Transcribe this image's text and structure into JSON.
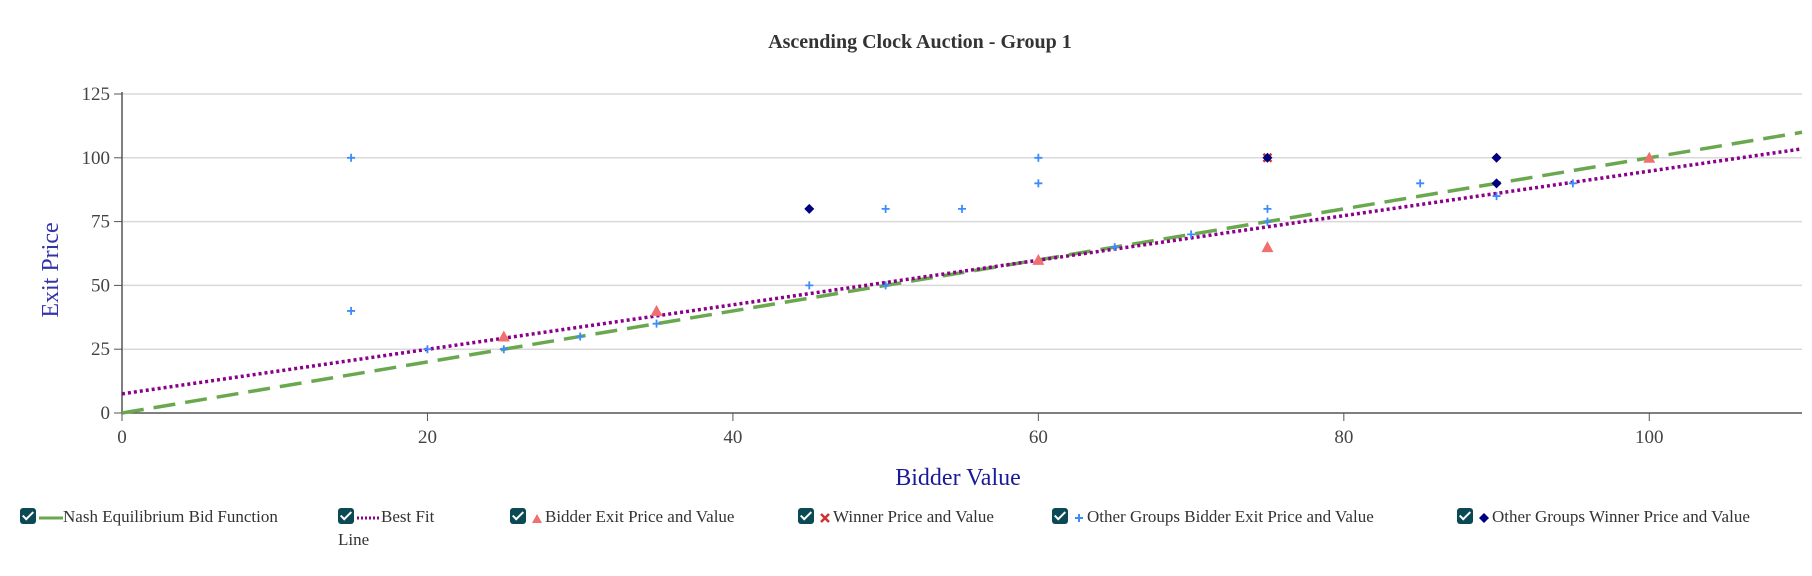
{
  "chart_data": {
    "type": "scatter",
    "title": "Ascending Clock Auction - Group 1",
    "xlabel": "Bidder Value",
    "ylabel": "Exit Price",
    "xlim": [
      0,
      110
    ],
    "ylim": [
      0,
      125
    ],
    "xticks": [
      0,
      20,
      40,
      60,
      80,
      100
    ],
    "yticks": [
      0,
      25,
      50,
      75,
      100,
      125
    ],
    "grid": "horizontal",
    "legend_position": "bottom",
    "series": [
      {
        "name": "Nash Equilibrium Bid Function",
        "kind": "line",
        "style": "dashed",
        "color": "#6aa84f",
        "x": [
          0,
          110
        ],
        "y": [
          0,
          110
        ]
      },
      {
        "name": "Best Fit Line",
        "kind": "line",
        "style": "dotted",
        "color": "#8b008b",
        "x": [
          0,
          110
        ],
        "y": [
          7.5,
          103.5
        ]
      },
      {
        "name": "Bidder Exit Price and Value",
        "kind": "scatter",
        "marker": "triangle",
        "color": "#f07070",
        "x": [
          25,
          35,
          60,
          75,
          100
        ],
        "y": [
          30,
          40,
          60,
          65,
          100
        ]
      },
      {
        "name": "Winner Price and Value",
        "kind": "scatter",
        "marker": "x",
        "color": "#cc3333",
        "x": [
          75
        ],
        "y": [
          100
        ]
      },
      {
        "name": "Other Groups Bidder Exit Price and Value",
        "kind": "scatter",
        "marker": "plus",
        "color": "#3d8bfd",
        "x": [
          15,
          15,
          20,
          25,
          30,
          35,
          45,
          50,
          50,
          55,
          60,
          60,
          65,
          70,
          75,
          75,
          85,
          90,
          90,
          95
        ],
        "y": [
          100,
          40,
          25,
          25,
          30,
          35,
          50,
          80,
          50,
          80,
          100,
          90,
          65,
          70,
          80,
          75,
          90,
          85,
          90,
          90
        ]
      },
      {
        "name": "Other Groups Winner Price and Value",
        "kind": "scatter",
        "marker": "diamond",
        "color": "#000080",
        "x": [
          45,
          75,
          90,
          90
        ],
        "y": [
          80,
          100,
          100,
          90
        ]
      }
    ]
  },
  "legend": [
    {
      "label": "Nash Equilibrium Bid Function"
    },
    {
      "label": "Best Fit Line"
    },
    {
      "label": "Bidder Exit Price and Value"
    },
    {
      "label": "Winner Price and Value"
    },
    {
      "label": "Other Groups Bidder Exit Price and Value"
    },
    {
      "label": "Other Groups Winner Price and Value"
    }
  ]
}
